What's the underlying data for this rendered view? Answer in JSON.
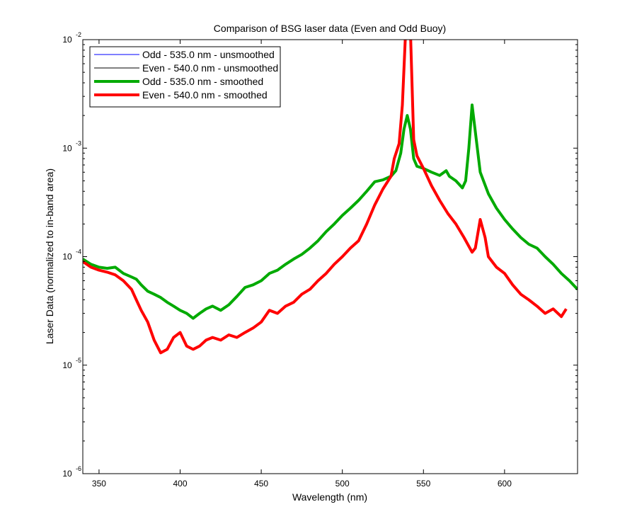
{
  "chart_data": {
    "type": "line",
    "title": "Comparison of BSG laser data (Even and Odd Buoy)",
    "xlabel": "Wavelength (nm)",
    "ylabel": "Laser Data (normalized to in-band area)",
    "xlim": [
      340,
      645
    ],
    "ylim": [
      1e-06,
      0.01
    ],
    "yscale": "log",
    "grid": false,
    "legend_position": "top-left",
    "x_ticks": [
      350,
      400,
      450,
      500,
      550,
      600
    ],
    "y_ticks": [
      {
        "value": 1e-06,
        "base": "10",
        "exp": "-6"
      },
      {
        "value": 1e-05,
        "base": "10",
        "exp": "-5"
      },
      {
        "value": 0.0001,
        "base": "10",
        "exp": "-4"
      },
      {
        "value": 0.001,
        "base": "10",
        "exp": "-3"
      },
      {
        "value": 0.01,
        "base": "10",
        "exp": "-2"
      }
    ],
    "series": [
      {
        "name": "Odd - 535.0 nm - unsmoothed",
        "color": "#0000ff",
        "width": 1,
        "x": [
          340,
          345,
          350,
          355,
          360,
          365,
          370,
          373,
          376,
          380,
          384,
          388,
          392,
          396,
          400,
          404,
          408,
          412,
          416,
          420,
          425,
          430,
          435,
          440,
          445,
          450,
          455,
          460,
          465,
          470,
          475,
          480,
          485,
          490,
          495,
          500,
          505,
          510,
          515,
          520,
          525,
          530,
          533,
          536,
          538,
          540,
          542,
          544,
          546,
          550,
          555,
          560,
          564,
          566,
          570,
          574,
          576,
          578,
          580,
          585,
          590,
          595,
          600,
          605,
          610,
          615,
          620,
          625,
          630,
          635,
          640,
          645
        ],
        "y": [
          9.5e-05,
          8.5e-05,
          8e-05,
          7.8e-05,
          8e-05,
          7e-05,
          6.5e-05,
          6.2e-05,
          5.5e-05,
          4.8e-05,
          4.5e-05,
          4.2e-05,
          3.8e-05,
          3.5e-05,
          3.2e-05,
          3e-05,
          2.7e-05,
          3e-05,
          3.3e-05,
          3.5e-05,
          3.2e-05,
          3.6e-05,
          4.3e-05,
          5.2e-05,
          5.5e-05,
          6e-05,
          7e-05,
          7.5e-05,
          8.5e-05,
          9.5e-05,
          0.000105,
          0.00012,
          0.00014,
          0.00017,
          0.0002,
          0.00024,
          0.00028,
          0.00033,
          0.0004,
          0.00049,
          0.00051,
          0.00055,
          0.00062,
          0.0009,
          0.0015,
          0.002,
          0.0015,
          0.0008,
          0.00068,
          0.00065,
          0.0006,
          0.00056,
          0.00062,
          0.00055,
          0.0005,
          0.00043,
          0.0005,
          0.001,
          0.0025,
          0.0006,
          0.00038,
          0.00028,
          0.00022,
          0.00018,
          0.00015,
          0.00013,
          0.00012,
          0.0001,
          8.5e-05,
          7e-05,
          6e-05,
          5e-05
        ]
      },
      {
        "name": "Even - 540.0 nm - unsmoothed",
        "color": "#000000",
        "width": 1,
        "x": [
          340,
          345,
          350,
          355,
          360,
          365,
          370,
          373,
          376,
          380,
          384,
          388,
          392,
          396,
          400,
          404,
          408,
          412,
          416,
          420,
          425,
          430,
          435,
          440,
          445,
          450,
          455,
          460,
          465,
          470,
          475,
          480,
          485,
          490,
          495,
          500,
          505,
          510,
          515,
          520,
          525,
          530,
          532,
          535,
          537,
          539,
          540,
          542,
          544,
          546,
          550,
          555,
          560,
          565,
          570,
          575,
          580,
          582,
          585,
          588,
          590,
          595,
          600,
          605,
          610,
          615,
          620,
          625,
          630,
          635,
          638
        ],
        "y": [
          9e-05,
          8e-05,
          7.5e-05,
          7.2e-05,
          6.8e-05,
          6e-05,
          5e-05,
          4e-05,
          3.2e-05,
          2.5e-05,
          1.7e-05,
          1.3e-05,
          1.4e-05,
          1.8e-05,
          2e-05,
          1.5e-05,
          1.4e-05,
          1.5e-05,
          1.7e-05,
          1.8e-05,
          1.7e-05,
          1.9e-05,
          1.8e-05,
          2e-05,
          2.2e-05,
          2.5e-05,
          3.2e-05,
          3e-05,
          3.5e-05,
          3.8e-05,
          4.5e-05,
          5e-05,
          6e-05,
          7e-05,
          8.5e-05,
          0.0001,
          0.00012,
          0.00014,
          0.0002,
          0.0003,
          0.00042,
          0.00055,
          0.0008,
          0.0011,
          0.0025,
          0.012,
          0.012,
          0.012,
          0.0012,
          0.00085,
          0.00065,
          0.00045,
          0.00033,
          0.00025,
          0.0002,
          0.00015,
          0.00011,
          0.00012,
          0.00022,
          0.00015,
          0.0001,
          8e-05,
          7e-05,
          5.5e-05,
          4.5e-05,
          4e-05,
          3.5e-05,
          3e-05,
          3.3e-05,
          2.8e-05,
          3.3e-05
        ]
      },
      {
        "name": "Odd - 535.0 nm - smoothed",
        "color": "#00aa00",
        "width": 4,
        "x": [
          340,
          345,
          350,
          355,
          360,
          365,
          370,
          373,
          376,
          380,
          384,
          388,
          392,
          396,
          400,
          404,
          408,
          412,
          416,
          420,
          425,
          430,
          435,
          440,
          445,
          450,
          455,
          460,
          465,
          470,
          475,
          480,
          485,
          490,
          495,
          500,
          505,
          510,
          515,
          520,
          525,
          530,
          533,
          536,
          538,
          540,
          542,
          544,
          546,
          550,
          555,
          560,
          564,
          566,
          570,
          574,
          576,
          578,
          580,
          585,
          590,
          595,
          600,
          605,
          610,
          615,
          620,
          625,
          630,
          635,
          640,
          645
        ],
        "y": [
          9.5e-05,
          8.5e-05,
          8e-05,
          7.8e-05,
          8e-05,
          7e-05,
          6.5e-05,
          6.2e-05,
          5.5e-05,
          4.8e-05,
          4.5e-05,
          4.2e-05,
          3.8e-05,
          3.5e-05,
          3.2e-05,
          3e-05,
          2.7e-05,
          3e-05,
          3.3e-05,
          3.5e-05,
          3.2e-05,
          3.6e-05,
          4.3e-05,
          5.2e-05,
          5.5e-05,
          6e-05,
          7e-05,
          7.5e-05,
          8.5e-05,
          9.5e-05,
          0.000105,
          0.00012,
          0.00014,
          0.00017,
          0.0002,
          0.00024,
          0.00028,
          0.00033,
          0.0004,
          0.00049,
          0.00051,
          0.00055,
          0.00062,
          0.0009,
          0.0015,
          0.002,
          0.0015,
          0.0008,
          0.00068,
          0.00065,
          0.0006,
          0.00056,
          0.00062,
          0.00055,
          0.0005,
          0.00043,
          0.0005,
          0.001,
          0.0025,
          0.0006,
          0.00038,
          0.00028,
          0.00022,
          0.00018,
          0.00015,
          0.00013,
          0.00012,
          0.0001,
          8.5e-05,
          7e-05,
          6e-05,
          5e-05
        ]
      },
      {
        "name": "Even - 540.0 nm - smoothed",
        "color": "#ff0000",
        "width": 4,
        "x": [
          340,
          345,
          350,
          355,
          360,
          365,
          370,
          373,
          376,
          380,
          384,
          388,
          392,
          396,
          400,
          404,
          408,
          412,
          416,
          420,
          425,
          430,
          435,
          440,
          445,
          450,
          455,
          460,
          465,
          470,
          475,
          480,
          485,
          490,
          495,
          500,
          505,
          510,
          515,
          520,
          525,
          530,
          532,
          535,
          537,
          539,
          540,
          542,
          544,
          546,
          550,
          555,
          560,
          565,
          570,
          575,
          580,
          582,
          585,
          588,
          590,
          595,
          600,
          605,
          610,
          615,
          620,
          625,
          630,
          635,
          638
        ],
        "y": [
          9e-05,
          8e-05,
          7.5e-05,
          7.2e-05,
          6.8e-05,
          6e-05,
          5e-05,
          4e-05,
          3.2e-05,
          2.5e-05,
          1.7e-05,
          1.3e-05,
          1.4e-05,
          1.8e-05,
          2e-05,
          1.5e-05,
          1.4e-05,
          1.5e-05,
          1.7e-05,
          1.8e-05,
          1.7e-05,
          1.9e-05,
          1.8e-05,
          2e-05,
          2.2e-05,
          2.5e-05,
          3.2e-05,
          3e-05,
          3.5e-05,
          3.8e-05,
          4.5e-05,
          5e-05,
          6e-05,
          7e-05,
          8.5e-05,
          0.0001,
          0.00012,
          0.00014,
          0.0002,
          0.0003,
          0.00042,
          0.00055,
          0.0008,
          0.0011,
          0.0025,
          0.012,
          0.012,
          0.012,
          0.0012,
          0.00085,
          0.00065,
          0.00045,
          0.00033,
          0.00025,
          0.0002,
          0.00015,
          0.00011,
          0.00012,
          0.00022,
          0.00015,
          0.0001,
          8e-05,
          7e-05,
          5.5e-05,
          4.5e-05,
          4e-05,
          3.5e-05,
          3e-05,
          3.3e-05,
          2.8e-05,
          3.3e-05
        ]
      }
    ]
  }
}
